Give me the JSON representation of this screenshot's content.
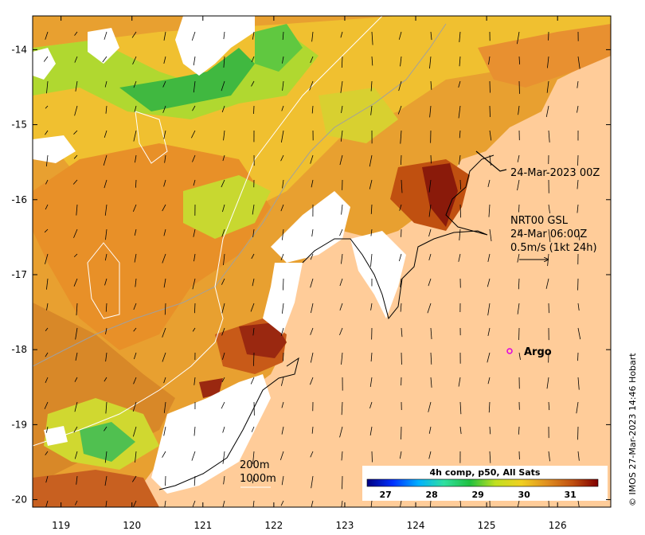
{
  "map": {
    "x_ticks": [
      "119",
      "120",
      "121",
      "122",
      "123",
      "124",
      "125",
      "126"
    ],
    "y_ticks": [
      "-14",
      "-15",
      "-16",
      "-17",
      "-18",
      "-19",
      "-20"
    ],
    "x_range": [
      118.6,
      126.75
    ],
    "y_range": [
      -20.1,
      -13.55
    ]
  },
  "annotations": {
    "track_time": "24-Mar-2023 00Z",
    "current_line1": "NRT00 GSL",
    "current_line2": "24-Mar 06:00Z",
    "current_line3": "0.5m/s (1kt 24h)",
    "argo_label": "Argo",
    "isobath_200": "200m",
    "isobath_1000": "1000m",
    "credit": "© IMOS 27-Mar-2023 14:46 Hobart"
  },
  "colorbar": {
    "title": "4h comp, p50, All Sats",
    "ticks": [
      "27",
      "28",
      "29",
      "30",
      "31"
    ],
    "range": [
      26.6,
      31.6
    ],
    "colors": [
      "#000080",
      "#0030ff",
      "#00b0ff",
      "#30e0a0",
      "#20c040",
      "#c0e020",
      "#f0d020",
      "#e09020",
      "#c05010",
      "#800000"
    ]
  },
  "colors": {
    "ocean_background": "#ffcc99",
    "land_cloud": "#ffffff",
    "argo_marker": "#e000e0"
  }
}
